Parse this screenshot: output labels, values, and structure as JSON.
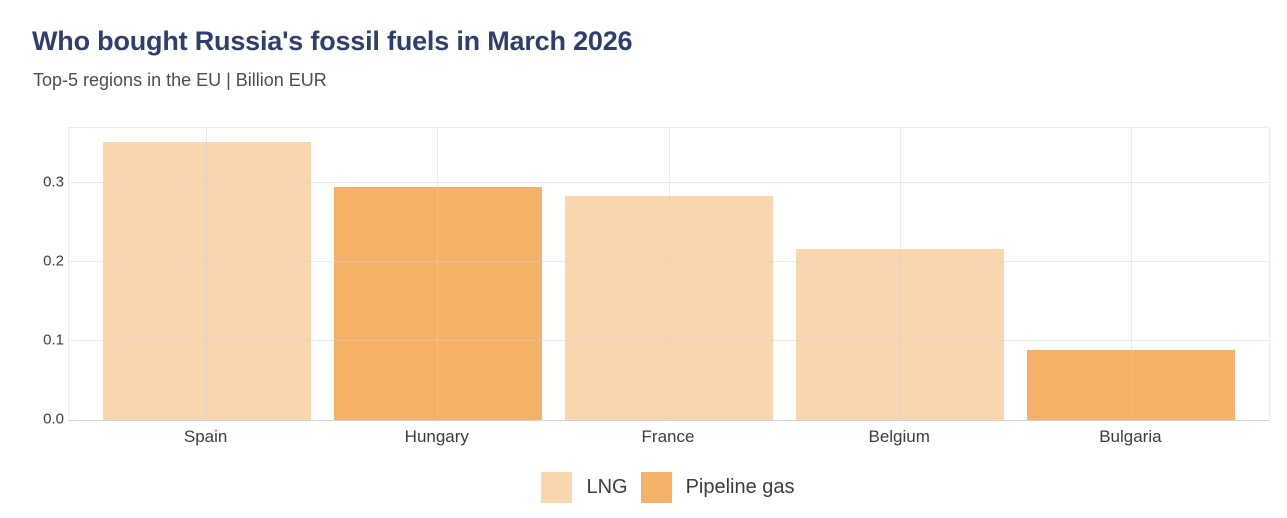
{
  "header": {
    "title": "Who bought Russia's fossil fuels in March 2026",
    "subtitle": "Top-5 regions in the EU | Billion EUR"
  },
  "chart_data": {
    "type": "bar",
    "title": "Who bought Russia's fossil fuels in March 2026",
    "subtitle": "Top-5 regions in the EU | Billion EUR",
    "categories": [
      "Spain",
      "Hungary",
      "France",
      "Belgium",
      "Bulgaria"
    ],
    "values": [
      0.351,
      0.294,
      0.283,
      0.216,
      0.088
    ],
    "bar_series": [
      "LNG",
      "Pipeline gas",
      "LNG",
      "LNG",
      "Pipeline gas"
    ],
    "series": [
      {
        "name": "LNG",
        "color": "#FAD6AE"
      },
      {
        "name": "Pipeline gas",
        "color": "#F4B167"
      }
    ],
    "xlabel": "",
    "ylabel": "",
    "yticks": [
      "0.0",
      "0.1",
      "0.2",
      "0.3"
    ],
    "ylim": [
      0,
      0.369
    ],
    "grid": true,
    "legend_position": "bottom",
    "colors": {
      "title": "#2F3E6E",
      "subtitle": "#4D4D4D",
      "axis_text": "#3D3D3D",
      "grid": "#E9ECF0",
      "axis_line": "#CDD3D9",
      "background": "#FFFFFF"
    }
  }
}
